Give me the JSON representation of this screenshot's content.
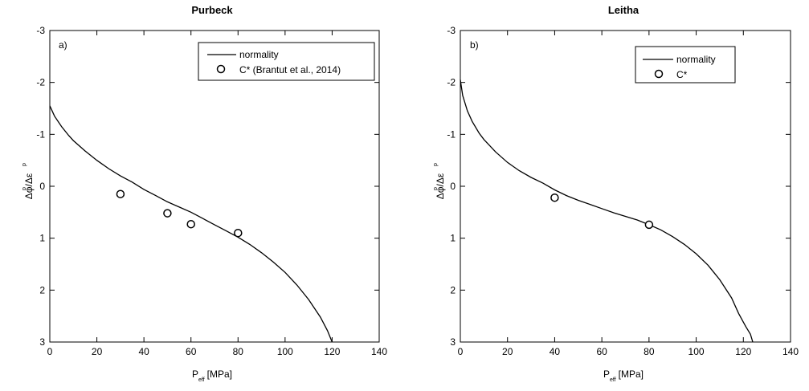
{
  "chart_data": [
    {
      "type": "line",
      "title": "Purbeck",
      "panel_label": "a)",
      "xlabel": "P",
      "xlabel_sub": "eff",
      "xlabel_unit": "[MPa]",
      "ylabel": "Δφ/Δε",
      "ylabel_sup": "p",
      "xlim": [
        0,
        140
      ],
      "ylim": [
        3,
        -3
      ],
      "y_inverted": true,
      "xticks": [
        0,
        20,
        40,
        60,
        80,
        100,
        120,
        140
      ],
      "yticks": [
        -3,
        -2,
        -1,
        0,
        1,
        2,
        3
      ],
      "legend_position": "top-right",
      "series": [
        {
          "name": "normality",
          "style": "line",
          "x": [
            0,
            2,
            5,
            8,
            10,
            15,
            20,
            25,
            30,
            35,
            40,
            45,
            50,
            55,
            60,
            65,
            70,
            75,
            80,
            85,
            90,
            95,
            100,
            105,
            110,
            115,
            118,
            120
          ],
          "y": [
            -1.55,
            -1.35,
            -1.15,
            -0.98,
            -0.88,
            -0.68,
            -0.5,
            -0.34,
            -0.2,
            -0.08,
            0.06,
            0.18,
            0.3,
            0.4,
            0.5,
            0.62,
            0.74,
            0.86,
            0.98,
            1.12,
            1.28,
            1.46,
            1.66,
            1.9,
            2.18,
            2.52,
            2.78,
            3.0
          ]
        },
        {
          "name": "C* (Brantut et al., 2014)",
          "style": "marker",
          "x": [
            30,
            50,
            60,
            80
          ],
          "y": [
            0.15,
            0.52,
            0.73,
            0.9
          ]
        }
      ]
    },
    {
      "type": "line",
      "title": "Leitha",
      "panel_label": "b)",
      "xlabel": "P",
      "xlabel_sub": "eff",
      "xlabel_unit": "[MPa]",
      "ylabel": "Δφ/Δε",
      "ylabel_sup": "p",
      "xlim": [
        0,
        140
      ],
      "ylim": [
        3,
        -3
      ],
      "y_inverted": true,
      "xticks": [
        0,
        20,
        40,
        60,
        80,
        100,
        120,
        140
      ],
      "yticks": [
        -3,
        -2,
        -1,
        0,
        1,
        2,
        3
      ],
      "legend_position": "top-right",
      "series": [
        {
          "name": "normality",
          "style": "line",
          "x": [
            0,
            1,
            3,
            5,
            8,
            10,
            15,
            20,
            25,
            30,
            35,
            40,
            45,
            50,
            55,
            60,
            65,
            70,
            75,
            80,
            85,
            90,
            95,
            100,
            105,
            110,
            115,
            118,
            121,
            123,
            124
          ],
          "y": [
            -2.05,
            -1.75,
            -1.45,
            -1.25,
            -1.02,
            -0.9,
            -0.66,
            -0.46,
            -0.3,
            -0.17,
            -0.06,
            0.07,
            0.18,
            0.27,
            0.35,
            0.43,
            0.51,
            0.58,
            0.65,
            0.74,
            0.84,
            0.97,
            1.12,
            1.3,
            1.52,
            1.8,
            2.15,
            2.45,
            2.7,
            2.85,
            3.0
          ]
        },
        {
          "name": "C*",
          "style": "marker",
          "x": [
            40,
            80
          ],
          "y": [
            0.22,
            0.74
          ]
        }
      ]
    }
  ]
}
